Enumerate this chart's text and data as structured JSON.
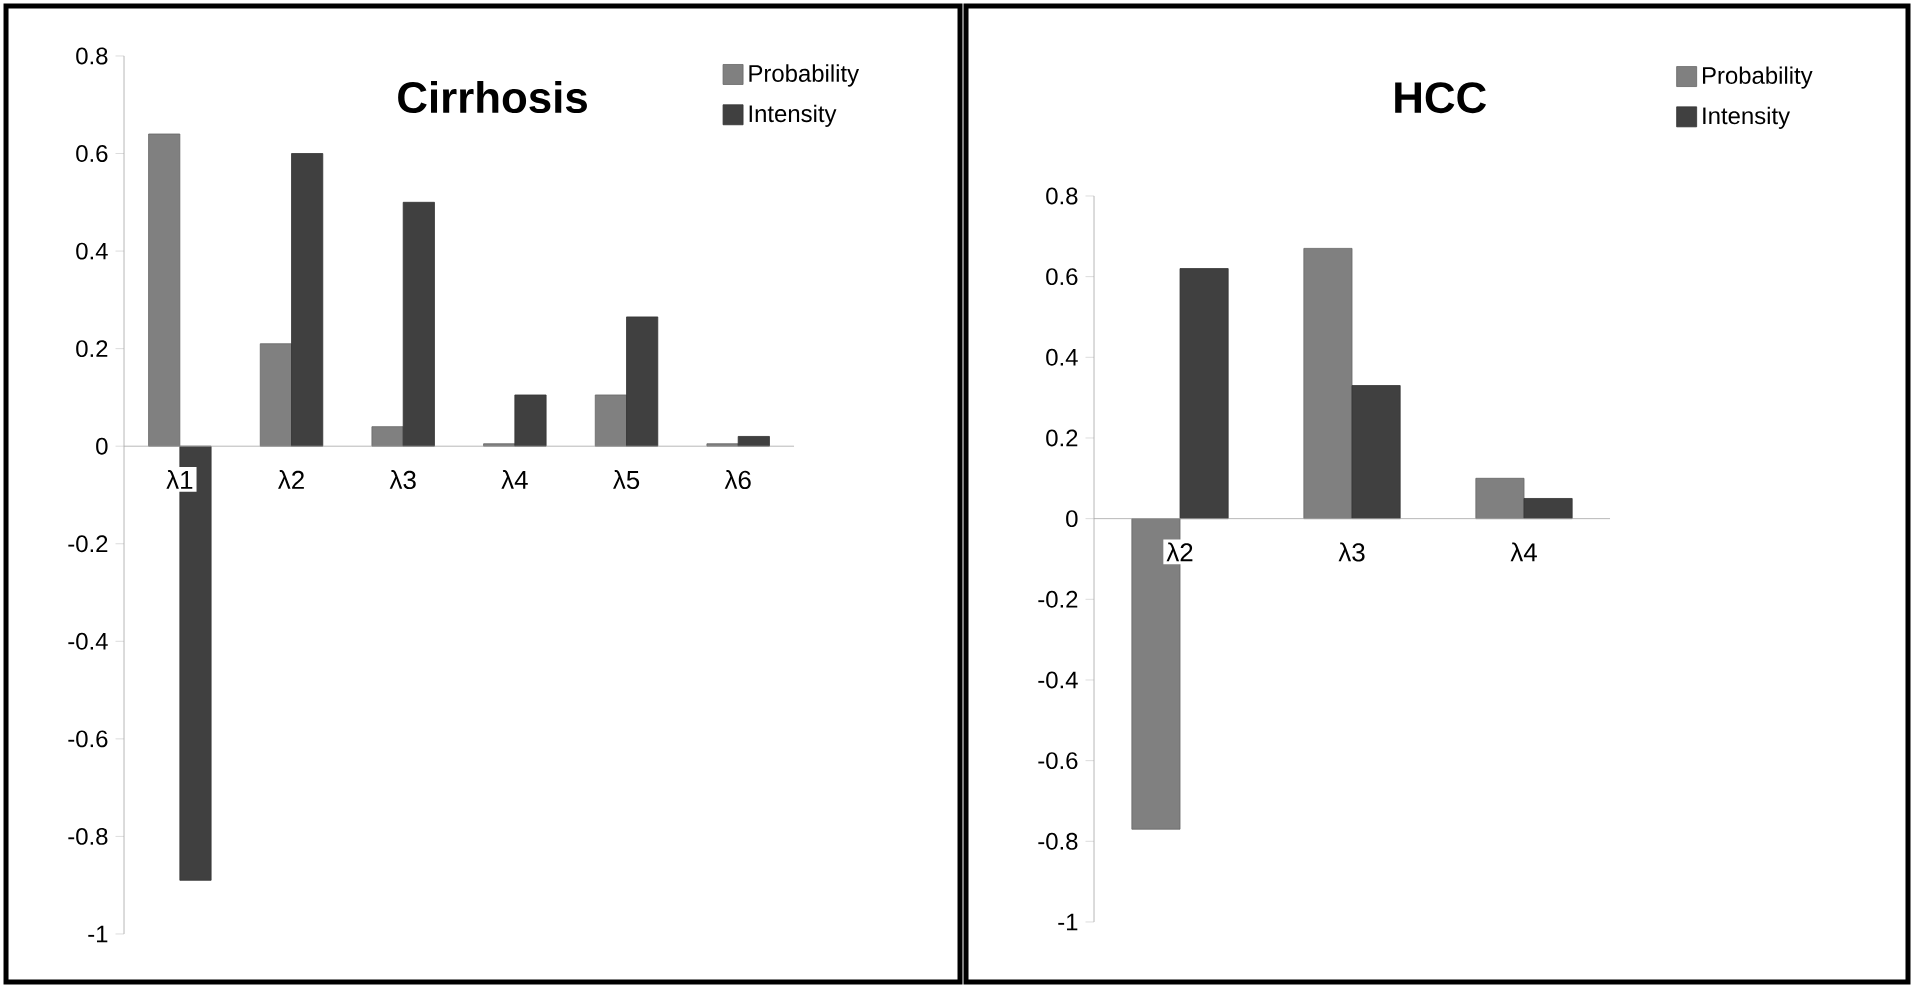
{
  "chart_data": [
    {
      "type": "bar",
      "title": "Cirrhosis",
      "categories": [
        "λ1",
        "λ2",
        "λ3",
        "λ4",
        "λ5",
        "λ6"
      ],
      "series": [
        {
          "name": "Probability",
          "color": "#808080",
          "values": [
            0.64,
            0.21,
            0.04,
            0.005,
            0.105,
            0.005
          ]
        },
        {
          "name": "Intensity",
          "color": "#404040",
          "values": [
            -0.89,
            0.6,
            0.5,
            0.105,
            0.265,
            0.02
          ]
        }
      ],
      "ylim": [
        -1,
        0.8
      ],
      "yticks": [
        -1,
        -0.8,
        -0.6,
        -0.4,
        -0.2,
        0,
        0.2,
        0.4,
        0.6,
        0.8
      ],
      "legend": "top right"
    },
    {
      "type": "bar",
      "title": "HCC",
      "categories": [
        "λ2",
        "λ3",
        "λ4"
      ],
      "series": [
        {
          "name": "Probability",
          "color": "#808080",
          "values": [
            -0.77,
            0.67,
            0.1
          ]
        },
        {
          "name": "Intensity",
          "color": "#404040",
          "values": [
            0.62,
            0.33,
            0.05
          ]
        }
      ],
      "ylim": [
        -1,
        0.8
      ],
      "yticks": [
        -1,
        -0.8,
        -0.6,
        -0.4,
        -0.2,
        0,
        0.2,
        0.4,
        0.6,
        0.8
      ],
      "legend": "top right"
    }
  ]
}
